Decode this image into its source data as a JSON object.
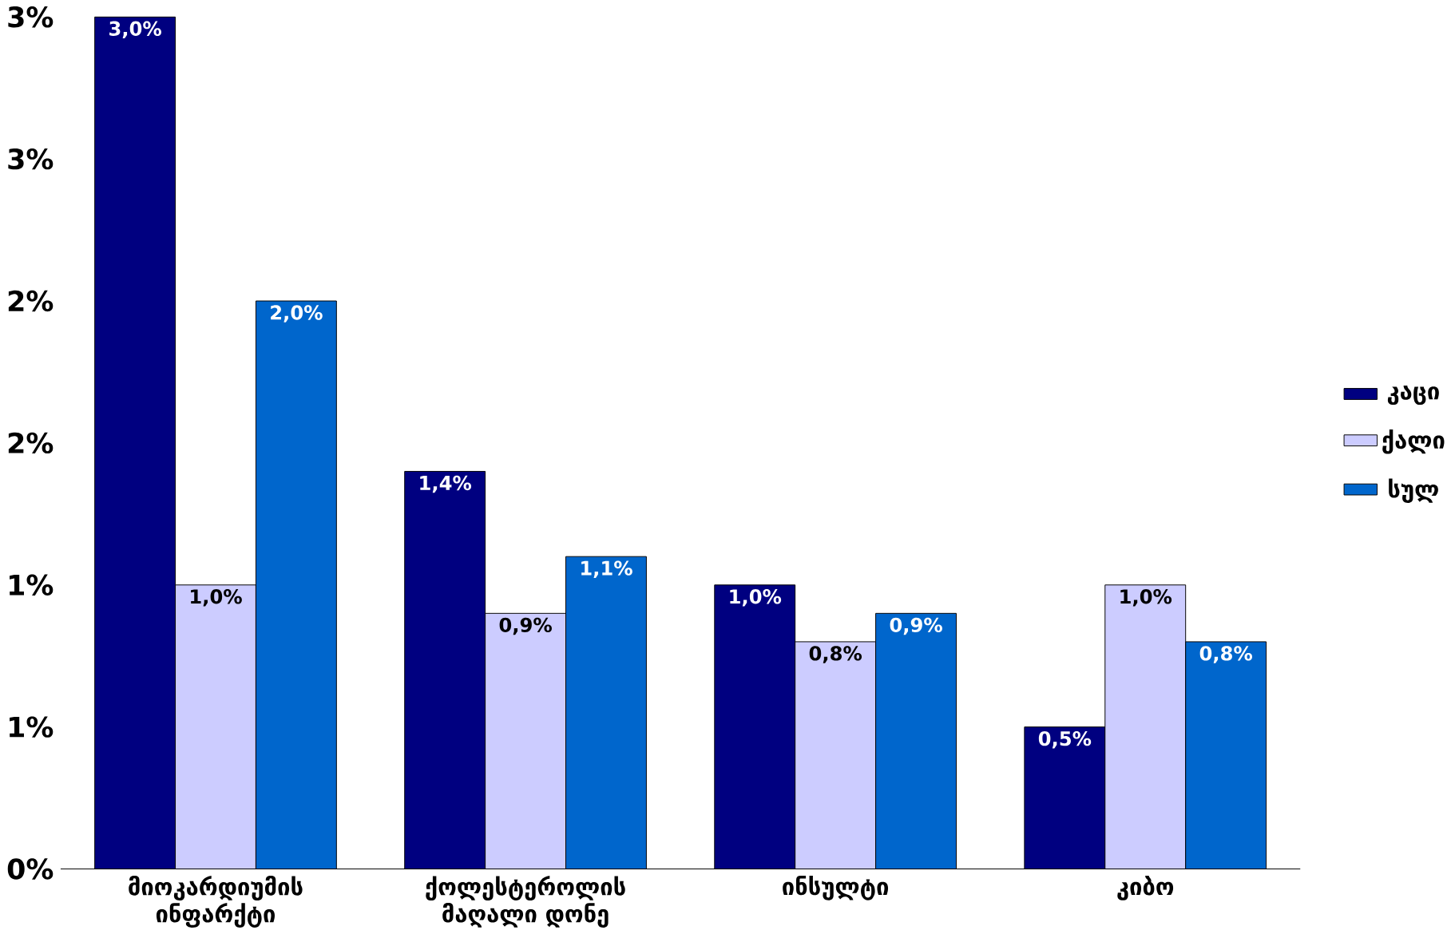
{
  "chart_data": {
    "type": "bar",
    "categories": [
      "მიოკარდიუმის ინფარქტი",
      "ქოლესტეროლის მაღალი დონე",
      "ინსულტი",
      "კიბო"
    ],
    "series": [
      {
        "name": "კაცი",
        "color": "#000080",
        "values": [
          3.0,
          1.4,
          1.0,
          0.5
        ],
        "value_labels": [
          "3,0%",
          "1,4%",
          "1,0%",
          "0,5%"
        ]
      },
      {
        "name": "ქალი",
        "color": "#ccccff",
        "values": [
          1.0,
          0.9,
          0.8,
          1.0
        ],
        "value_labels": [
          "1,0%",
          "0,9%",
          "0,8%",
          "1,0%"
        ]
      },
      {
        "name": "სულ",
        "color": "#0066cc",
        "values": [
          2.0,
          1.1,
          0.9,
          0.8
        ],
        "value_labels": [
          "2,0%",
          "1,1%",
          "0,9%",
          "0,8%"
        ]
      }
    ],
    "ylim": [
      0,
      3.0
    ],
    "yticks": [
      {
        "value": 0,
        "label": "0%"
      },
      {
        "value": 0.5,
        "label": "1%"
      },
      {
        "value": 1.0,
        "label": "1%"
      },
      {
        "value": 1.5,
        "label": "2%"
      },
      {
        "value": 2.0,
        "label": "2%"
      },
      {
        "value": 2.5,
        "label": "3%"
      },
      {
        "value": 3.0,
        "label": "3%"
      }
    ],
    "grid": false,
    "legend": "right"
  }
}
